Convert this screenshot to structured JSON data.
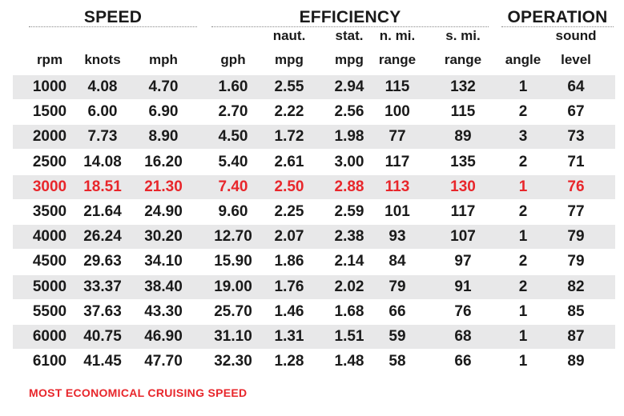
{
  "groups": {
    "speed": "SPEED",
    "efficiency": "EFFICIENCY",
    "operation": "OPERATION"
  },
  "columns": [
    {
      "top": "",
      "bottom": "rpm"
    },
    {
      "top": "",
      "bottom": "knots"
    },
    {
      "top": "",
      "bottom": "mph"
    },
    {
      "top": "",
      "bottom": "gph"
    },
    {
      "top": "naut.",
      "bottom": "mpg"
    },
    {
      "top": "stat.",
      "bottom": "mpg"
    },
    {
      "top": "n. mi.",
      "bottom": "range"
    },
    {
      "top": "s. mi.",
      "bottom": "range"
    },
    {
      "top": "",
      "bottom": "angle"
    },
    {
      "top": "sound",
      "bottom": "level"
    }
  ],
  "rows": [
    [
      "1000",
      "4.08",
      "4.70",
      "1.60",
      "2.55",
      "2.94",
      "115",
      "132",
      "1",
      "64"
    ],
    [
      "1500",
      "6.00",
      "6.90",
      "2.70",
      "2.22",
      "2.56",
      "100",
      "115",
      "2",
      "67"
    ],
    [
      "2000",
      "7.73",
      "8.90",
      "4.50",
      "1.72",
      "1.98",
      "77",
      "89",
      "3",
      "73"
    ],
    [
      "2500",
      "14.08",
      "16.20",
      "5.40",
      "2.61",
      "3.00",
      "117",
      "135",
      "2",
      "71"
    ],
    [
      "3000",
      "18.51",
      "21.30",
      "7.40",
      "2.50",
      "2.88",
      "113",
      "130",
      "1",
      "76"
    ],
    [
      "3500",
      "21.64",
      "24.90",
      "9.60",
      "2.25",
      "2.59",
      "101",
      "117",
      "2",
      "77"
    ],
    [
      "4000",
      "26.24",
      "30.20",
      "12.70",
      "2.07",
      "2.38",
      "93",
      "107",
      "1",
      "79"
    ],
    [
      "4500",
      "29.63",
      "34.10",
      "15.90",
      "1.86",
      "2.14",
      "84",
      "97",
      "2",
      "79"
    ],
    [
      "5000",
      "33.37",
      "38.40",
      "19.00",
      "1.76",
      "2.02",
      "79",
      "91",
      "2",
      "82"
    ],
    [
      "5500",
      "37.63",
      "43.30",
      "25.70",
      "1.46",
      "1.68",
      "66",
      "76",
      "1",
      "85"
    ],
    [
      "6000",
      "40.75",
      "46.90",
      "31.10",
      "1.31",
      "1.51",
      "59",
      "68",
      "1",
      "87"
    ],
    [
      "6100",
      "41.45",
      "47.70",
      "32.30",
      "1.28",
      "1.48",
      "58",
      "66",
      "1",
      "89"
    ]
  ],
  "highlight_row": 4,
  "highlight_color": "#e8262b",
  "shade_color": "#e8e8e9",
  "footnote": "MOST ECONOMICAL CRUISING SPEED"
}
